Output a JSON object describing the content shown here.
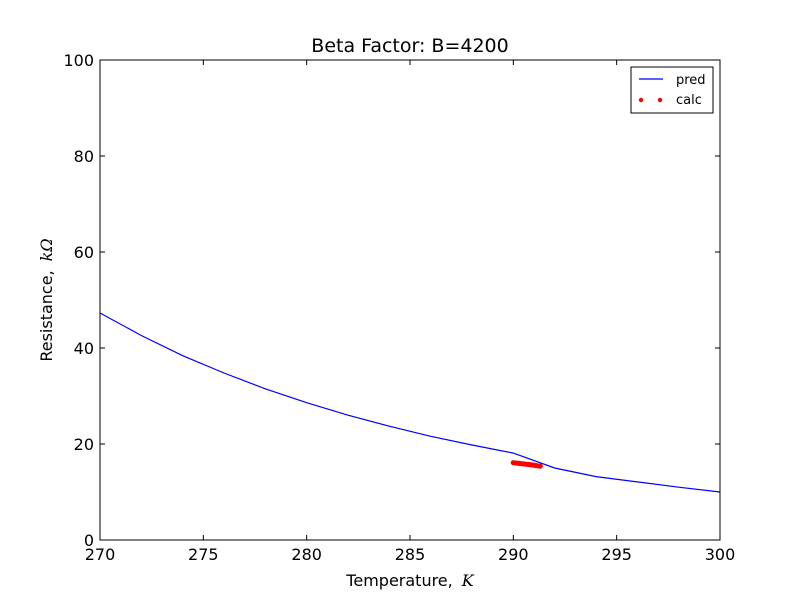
{
  "chart_data": {
    "type": "line",
    "title": "Beta Factor: B=4200",
    "xlabel": "Temperature,",
    "xlabel_symbol": "K",
    "ylabel": "Resistance,",
    "ylabel_symbol": "kΩ",
    "xlim": [
      270,
      300
    ],
    "ylim": [
      0,
      100
    ],
    "xticks": [
      270,
      275,
      280,
      285,
      290,
      295,
      300
    ],
    "yticks": [
      0,
      20,
      40,
      60,
      80,
      100
    ],
    "grid": false,
    "legend_position": "top-right",
    "series": [
      {
        "name": "pred",
        "kind": "line",
        "color": "#0000ff",
        "x": [
          270,
          272,
          274,
          276,
          278,
          280,
          282,
          284,
          286,
          288,
          290,
          292,
          294,
          296,
          298,
          300
        ],
        "y": [
          47.3,
          42.6,
          38.4,
          34.8,
          31.5,
          28.6,
          26.0,
          23.7,
          21.6,
          19.8,
          18.1,
          15.0,
          13.2,
          12.1,
          11.0,
          10.0
        ]
      },
      {
        "name": "calc",
        "kind": "scatter",
        "color": "#ff0000",
        "x": [
          290.0,
          290.1,
          290.2,
          290.3,
          290.4,
          290.5,
          290.6,
          290.7,
          290.8,
          290.9,
          291.0,
          291.1,
          291.2,
          291.3
        ],
        "y": [
          16.1,
          16.05,
          16.0,
          15.95,
          15.9,
          15.85,
          15.8,
          15.75,
          15.7,
          15.65,
          15.6,
          15.5,
          15.45,
          15.4
        ]
      }
    ]
  }
}
